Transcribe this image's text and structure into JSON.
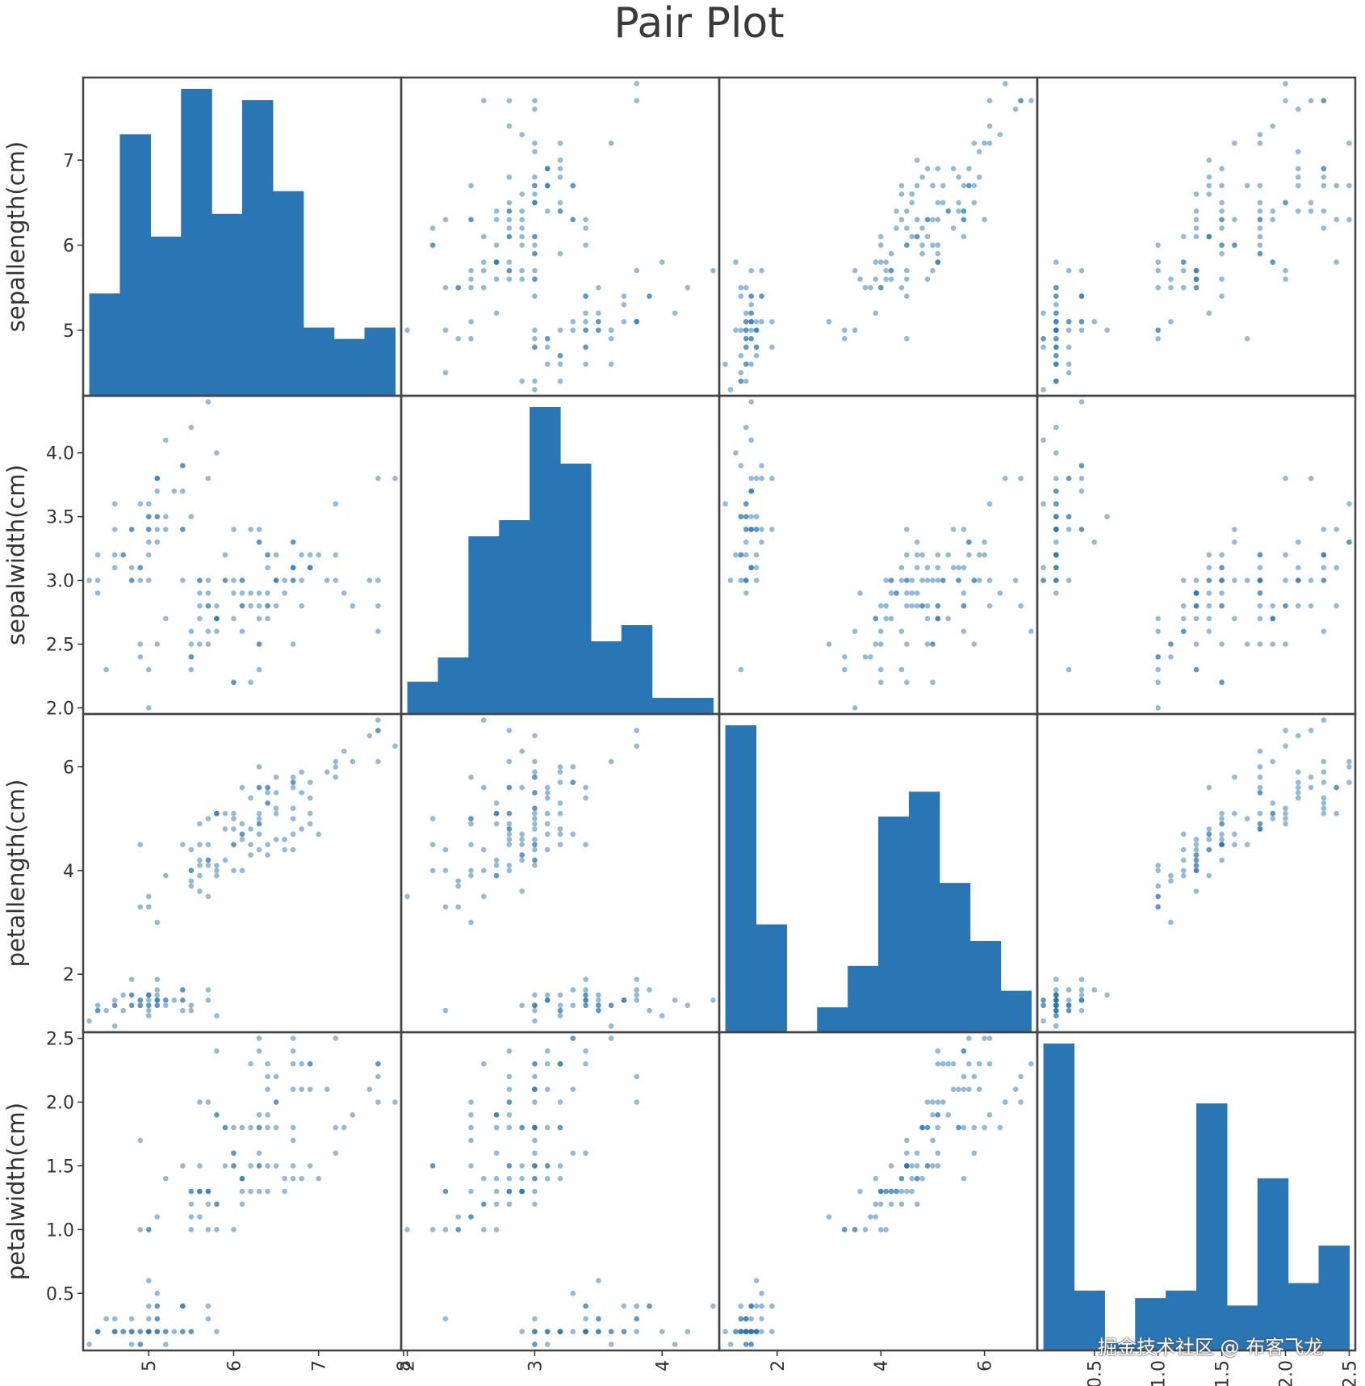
{
  "chart_data": {
    "type": "scatter",
    "kind": "scatter_matrix",
    "title": "Pair Plot",
    "variables": [
      "sepallength(cm)",
      "sepalwidth(cm)",
      "petallength(cm)",
      "petalwidth(cm)"
    ],
    "ranges": [
      [
        4.3,
        7.9
      ],
      [
        2.0,
        4.4
      ],
      [
        1.0,
        6.9
      ],
      [
        0.1,
        2.5
      ]
    ],
    "ticks": [
      {
        "values": [
          5,
          6,
          7,
          8
        ],
        "labels": [
          "5",
          "6",
          "7",
          "8"
        ]
      },
      {
        "values": [
          2.0,
          2.5,
          3.0,
          3.5,
          4.0
        ],
        "labels": [
          "2.0",
          "2.5",
          "3.0",
          "3.5",
          "4.0"
        ],
        "x_values": [
          2,
          3,
          4
        ],
        "x_labels": [
          "2",
          "3",
          "4"
        ]
      },
      {
        "values": [
          2,
          4,
          6
        ],
        "labels": [
          "2",
          "4",
          "6"
        ]
      },
      {
        "values": [
          0.5,
          1.0,
          1.5,
          2.0,
          2.5
        ],
        "labels": [
          "0.5",
          "1.0",
          "1.5",
          "2.0",
          "2.5"
        ]
      }
    ],
    "histograms": [
      {
        "variable": "sepallength(cm)",
        "bins": 10,
        "counts": [
          9,
          23,
          14,
          27,
          16,
          26,
          18,
          6,
          5,
          6
        ]
      },
      {
        "variable": "sepalwidth(cm)",
        "bins": 10,
        "counts": [
          4,
          7,
          22,
          24,
          38,
          31,
          9,
          11,
          2,
          2
        ]
      },
      {
        "variable": "petallength(cm)",
        "bins": 10,
        "counts": [
          37,
          13,
          0,
          3,
          8,
          26,
          29,
          18,
          11,
          5
        ]
      },
      {
        "variable": "petalwidth(cm)",
        "bins": 10,
        "counts": [
          41,
          8,
          1,
          7,
          8,
          33,
          6,
          23,
          9,
          14
        ]
      }
    ],
    "points": [
      [
        5.1,
        3.5,
        1.4,
        0.2
      ],
      [
        4.9,
        3.0,
        1.4,
        0.2
      ],
      [
        4.7,
        3.2,
        1.3,
        0.2
      ],
      [
        4.6,
        3.1,
        1.5,
        0.2
      ],
      [
        5.0,
        3.6,
        1.4,
        0.2
      ],
      [
        5.4,
        3.9,
        1.7,
        0.4
      ],
      [
        4.6,
        3.4,
        1.4,
        0.3
      ],
      [
        5.0,
        3.4,
        1.5,
        0.2
      ],
      [
        4.4,
        2.9,
        1.4,
        0.2
      ],
      [
        4.9,
        3.1,
        1.5,
        0.1
      ],
      [
        5.4,
        3.7,
        1.5,
        0.2
      ],
      [
        4.8,
        3.4,
        1.6,
        0.2
      ],
      [
        4.8,
        3.0,
        1.4,
        0.1
      ],
      [
        4.3,
        3.0,
        1.1,
        0.1
      ],
      [
        5.8,
        4.0,
        1.2,
        0.2
      ],
      [
        5.7,
        4.4,
        1.5,
        0.4
      ],
      [
        5.4,
        3.9,
        1.3,
        0.4
      ],
      [
        5.1,
        3.5,
        1.4,
        0.3
      ],
      [
        5.7,
        3.8,
        1.7,
        0.3
      ],
      [
        5.1,
        3.8,
        1.5,
        0.3
      ],
      [
        5.4,
        3.4,
        1.7,
        0.2
      ],
      [
        5.1,
        3.7,
        1.5,
        0.4
      ],
      [
        4.6,
        3.6,
        1.0,
        0.2
      ],
      [
        5.1,
        3.3,
        1.7,
        0.5
      ],
      [
        4.8,
        3.4,
        1.9,
        0.2
      ],
      [
        5.0,
        3.0,
        1.6,
        0.2
      ],
      [
        5.0,
        3.4,
        1.6,
        0.4
      ],
      [
        5.2,
        3.5,
        1.5,
        0.2
      ],
      [
        5.2,
        3.4,
        1.4,
        0.2
      ],
      [
        4.7,
        3.2,
        1.6,
        0.2
      ],
      [
        4.8,
        3.1,
        1.6,
        0.2
      ],
      [
        5.4,
        3.4,
        1.5,
        0.4
      ],
      [
        5.2,
        4.1,
        1.5,
        0.1
      ],
      [
        5.5,
        4.2,
        1.4,
        0.2
      ],
      [
        4.9,
        3.1,
        1.5,
        0.2
      ],
      [
        5.0,
        3.2,
        1.2,
        0.2
      ],
      [
        5.5,
        3.5,
        1.3,
        0.2
      ],
      [
        4.9,
        3.6,
        1.4,
        0.1
      ],
      [
        4.4,
        3.0,
        1.3,
        0.2
      ],
      [
        5.1,
        3.4,
        1.5,
        0.2
      ],
      [
        5.0,
        3.5,
        1.3,
        0.3
      ],
      [
        4.5,
        2.3,
        1.3,
        0.3
      ],
      [
        4.4,
        3.2,
        1.3,
        0.2
      ],
      [
        5.0,
        3.5,
        1.6,
        0.6
      ],
      [
        5.1,
        3.8,
        1.9,
        0.4
      ],
      [
        4.8,
        3.0,
        1.4,
        0.3
      ],
      [
        5.1,
        3.8,
        1.6,
        0.2
      ],
      [
        4.6,
        3.2,
        1.4,
        0.2
      ],
      [
        5.3,
        3.7,
        1.5,
        0.2
      ],
      [
        5.0,
        3.3,
        1.4,
        0.2
      ],
      [
        7.0,
        3.2,
        4.7,
        1.4
      ],
      [
        6.4,
        3.2,
        4.5,
        1.5
      ],
      [
        6.9,
        3.1,
        4.9,
        1.5
      ],
      [
        5.5,
        2.3,
        4.0,
        1.3
      ],
      [
        6.5,
        2.8,
        4.6,
        1.5
      ],
      [
        5.7,
        2.8,
        4.5,
        1.3
      ],
      [
        6.3,
        3.3,
        4.7,
        1.6
      ],
      [
        4.9,
        2.4,
        3.3,
        1.0
      ],
      [
        6.6,
        2.9,
        4.6,
        1.3
      ],
      [
        5.2,
        2.7,
        3.9,
        1.4
      ],
      [
        5.0,
        2.0,
        3.5,
        1.0
      ],
      [
        5.9,
        3.0,
        4.2,
        1.5
      ],
      [
        6.0,
        2.2,
        4.0,
        1.0
      ],
      [
        6.1,
        2.9,
        4.7,
        1.4
      ],
      [
        5.6,
        2.9,
        3.6,
        1.3
      ],
      [
        6.7,
        3.1,
        4.4,
        1.4
      ],
      [
        5.6,
        3.0,
        4.5,
        1.5
      ],
      [
        5.8,
        2.7,
        4.1,
        1.0
      ],
      [
        6.2,
        2.2,
        4.5,
        1.5
      ],
      [
        5.6,
        2.5,
        3.9,
        1.1
      ],
      [
        5.9,
        3.2,
        4.8,
        1.8
      ],
      [
        6.1,
        2.8,
        4.0,
        1.3
      ],
      [
        6.3,
        2.5,
        4.9,
        1.5
      ],
      [
        6.1,
        2.8,
        4.7,
        1.2
      ],
      [
        6.4,
        2.9,
        4.3,
        1.3
      ],
      [
        6.6,
        3.0,
        4.4,
        1.4
      ],
      [
        6.8,
        2.8,
        4.8,
        1.4
      ],
      [
        6.7,
        3.0,
        5.0,
        1.7
      ],
      [
        6.0,
        2.9,
        4.5,
        1.5
      ],
      [
        5.7,
        2.6,
        3.5,
        1.0
      ],
      [
        5.5,
        2.4,
        3.8,
        1.1
      ],
      [
        5.5,
        2.4,
        3.7,
        1.0
      ],
      [
        5.8,
        2.7,
        3.9,
        1.2
      ],
      [
        6.0,
        2.7,
        5.1,
        1.6
      ],
      [
        5.4,
        3.0,
        4.5,
        1.5
      ],
      [
        6.0,
        3.4,
        4.5,
        1.6
      ],
      [
        6.7,
        3.1,
        4.7,
        1.5
      ],
      [
        6.3,
        2.3,
        4.4,
        1.3
      ],
      [
        5.6,
        3.0,
        4.1,
        1.3
      ],
      [
        5.5,
        2.5,
        4.0,
        1.3
      ],
      [
        5.5,
        2.6,
        4.4,
        1.2
      ],
      [
        6.1,
        3.0,
        4.6,
        1.4
      ],
      [
        5.8,
        2.6,
        4.0,
        1.2
      ],
      [
        5.0,
        2.3,
        3.3,
        1.0
      ],
      [
        5.6,
        2.7,
        4.2,
        1.3
      ],
      [
        5.7,
        3.0,
        4.2,
        1.2
      ],
      [
        5.7,
        2.9,
        4.2,
        1.3
      ],
      [
        6.2,
        2.9,
        4.3,
        1.3
      ],
      [
        5.1,
        2.5,
        3.0,
        1.1
      ],
      [
        5.7,
        2.8,
        4.1,
        1.3
      ],
      [
        6.3,
        3.3,
        6.0,
        2.5
      ],
      [
        5.8,
        2.7,
        5.1,
        1.9
      ],
      [
        7.1,
        3.0,
        5.9,
        2.1
      ],
      [
        6.3,
        2.9,
        5.6,
        1.8
      ],
      [
        6.5,
        3.0,
        5.8,
        2.2
      ],
      [
        7.6,
        3.0,
        6.6,
        2.1
      ],
      [
        4.9,
        2.5,
        4.5,
        1.7
      ],
      [
        7.3,
        2.9,
        6.3,
        1.8
      ],
      [
        6.7,
        2.5,
        5.8,
        1.8
      ],
      [
        7.2,
        3.6,
        6.1,
        2.5
      ],
      [
        6.5,
        3.2,
        5.1,
        2.0
      ],
      [
        6.4,
        2.7,
        5.3,
        1.9
      ],
      [
        6.8,
        3.0,
        5.5,
        2.1
      ],
      [
        5.7,
        2.5,
        5.0,
        2.0
      ],
      [
        5.8,
        2.8,
        5.1,
        2.4
      ],
      [
        6.4,
        3.2,
        5.3,
        2.3
      ],
      [
        6.5,
        3.0,
        5.5,
        1.8
      ],
      [
        7.7,
        3.8,
        6.7,
        2.2
      ],
      [
        7.7,
        2.6,
        6.9,
        2.3
      ],
      [
        6.0,
        2.2,
        5.0,
        1.5
      ],
      [
        6.9,
        3.2,
        5.7,
        2.3
      ],
      [
        5.6,
        2.8,
        4.9,
        2.0
      ],
      [
        7.7,
        2.8,
        6.7,
        2.0
      ],
      [
        6.3,
        2.7,
        4.9,
        1.8
      ],
      [
        6.7,
        3.3,
        5.7,
        2.1
      ],
      [
        7.2,
        3.2,
        6.0,
        1.8
      ],
      [
        6.2,
        2.8,
        4.8,
        1.8
      ],
      [
        6.1,
        3.0,
        4.9,
        1.8
      ],
      [
        6.4,
        2.8,
        5.6,
        2.1
      ],
      [
        7.2,
        3.0,
        5.8,
        1.6
      ],
      [
        7.4,
        2.8,
        6.1,
        1.9
      ],
      [
        7.9,
        3.8,
        6.4,
        2.0
      ],
      [
        6.4,
        2.8,
        5.6,
        2.2
      ],
      [
        6.3,
        2.8,
        5.1,
        1.5
      ],
      [
        6.1,
        2.6,
        5.6,
        1.4
      ],
      [
        7.7,
        3.0,
        6.1,
        2.3
      ],
      [
        6.3,
        3.4,
        5.6,
        2.4
      ],
      [
        6.4,
        3.1,
        5.5,
        1.8
      ],
      [
        6.0,
        3.0,
        4.8,
        1.8
      ],
      [
        6.9,
        3.1,
        5.4,
        2.1
      ],
      [
        6.7,
        3.1,
        5.6,
        2.4
      ],
      [
        6.9,
        3.1,
        5.1,
        2.3
      ],
      [
        5.8,
        2.7,
        5.1,
        1.9
      ],
      [
        6.8,
        3.2,
        5.9,
        2.3
      ],
      [
        6.7,
        3.3,
        5.7,
        2.5
      ],
      [
        6.7,
        3.0,
        5.2,
        2.3
      ],
      [
        6.3,
        2.5,
        5.0,
        1.9
      ],
      [
        6.5,
        3.0,
        5.2,
        2.0
      ],
      [
        6.2,
        3.4,
        5.4,
        2.3
      ],
      [
        5.9,
        3.0,
        5.1,
        1.8
      ]
    ],
    "color": "#2a75b3",
    "grid": false,
    "legend": "none"
  },
  "watermark": "掘金技术社区 @ 布客飞龙"
}
